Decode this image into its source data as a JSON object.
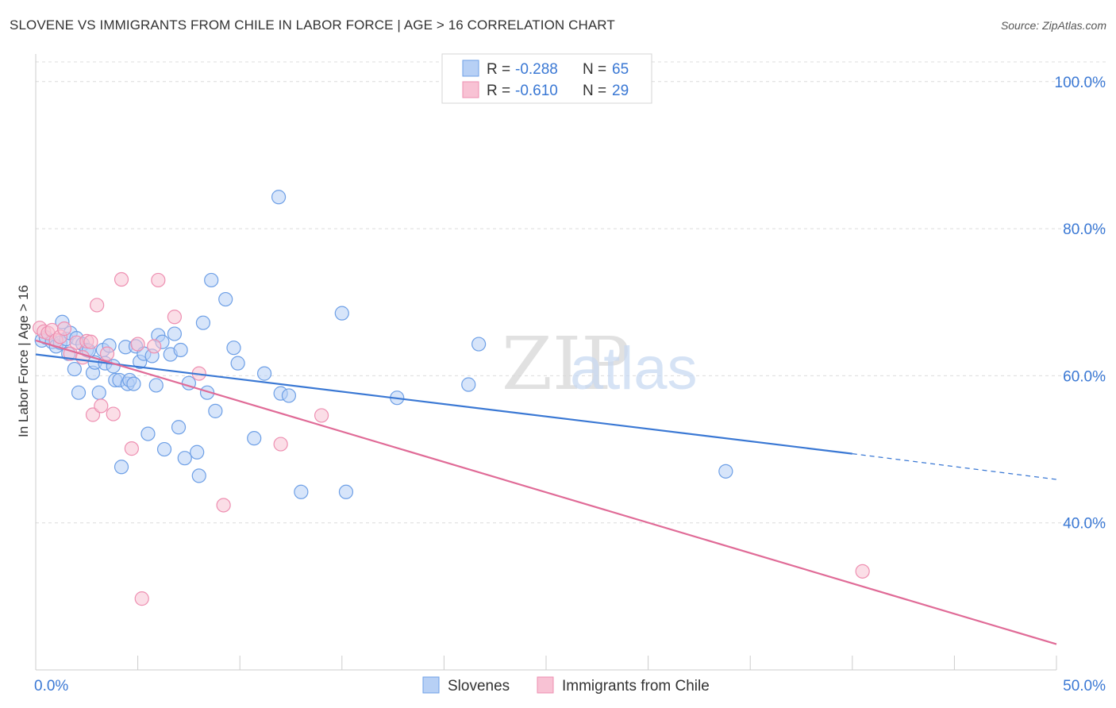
{
  "title": "SLOVENE VS IMMIGRANTS FROM CHILE IN LABOR FORCE | AGE > 16 CORRELATION CHART",
  "source": "Source: ZipAtlas.com",
  "watermark": {
    "zip": "ZIP",
    "atlas": "atlas"
  },
  "colors": {
    "blue": "#3a78d4",
    "blue_fill": "#b7d0f5",
    "blue_stroke": "#6d9fe6",
    "pink": "#e06b97",
    "pink_fill": "#f8c2d4",
    "pink_stroke": "#ee8fb1",
    "tick_text": "#3a78d4",
    "grid": "#dcdcdc"
  },
  "legend_top": [
    {
      "label_r": "R = ",
      "r": "-0.288",
      "label_n": "N = ",
      "n": "65"
    },
    {
      "label_r": "R = ",
      "r": "-0.610",
      "label_n": "N = ",
      "n": "29"
    }
  ],
  "chart_data": {
    "type": "scatter",
    "title": "SLOVENE VS IMMIGRANTS FROM CHILE IN LABOR FORCE | AGE > 16 CORRELATION CHART",
    "xlabel": "",
    "ylabel": "In Labor Force | Age > 16",
    "xlim": [
      0,
      50
    ],
    "ylim": [
      20,
      103
    ],
    "x_tick_labels": [
      "0.0%",
      "50.0%"
    ],
    "y_ticks": [
      40,
      60,
      80,
      100
    ],
    "y_tick_labels": [
      "40.0%",
      "60.0%",
      "80.0%",
      "100.0%"
    ],
    "legend": [
      "Slovenes",
      "Immigrants from Chile"
    ],
    "series": [
      {
        "name": "Slovenes",
        "trend": {
          "x0": 0,
          "y0": 62.9,
          "x1": 40,
          "y1": 49.4,
          "x_dash_end": 50,
          "y_dash_end": 45.9
        },
        "points": [
          [
            0.3,
            64.8
          ],
          [
            0.5,
            65.2
          ],
          [
            0.8,
            64.6
          ],
          [
            1.0,
            64.0
          ],
          [
            1.2,
            64.5
          ],
          [
            1.3,
            67.3
          ],
          [
            1.5,
            65.0
          ],
          [
            1.6,
            63.0
          ],
          [
            1.7,
            65.8
          ],
          [
            1.9,
            60.9
          ],
          [
            2.0,
            65.1
          ],
          [
            2.1,
            57.7
          ],
          [
            2.3,
            64.3
          ],
          [
            2.5,
            63.5
          ],
          [
            2.6,
            63.4
          ],
          [
            2.8,
            60.4
          ],
          [
            2.9,
            61.8
          ],
          [
            3.1,
            57.7
          ],
          [
            3.3,
            63.5
          ],
          [
            3.4,
            61.7
          ],
          [
            3.6,
            64.1
          ],
          [
            3.8,
            61.3
          ],
          [
            3.9,
            59.4
          ],
          [
            4.1,
            59.4
          ],
          [
            4.2,
            47.6
          ],
          [
            4.4,
            63.9
          ],
          [
            4.5,
            58.9
          ],
          [
            4.6,
            59.4
          ],
          [
            4.8,
            58.9
          ],
          [
            4.9,
            64.0
          ],
          [
            5.1,
            61.9
          ],
          [
            5.3,
            63.0
          ],
          [
            5.5,
            52.1
          ],
          [
            5.7,
            62.7
          ],
          [
            5.9,
            58.7
          ],
          [
            6.0,
            65.5
          ],
          [
            6.2,
            64.6
          ],
          [
            6.3,
            50.0
          ],
          [
            6.6,
            62.9
          ],
          [
            6.8,
            65.7
          ],
          [
            7.0,
            53.0
          ],
          [
            7.1,
            63.5
          ],
          [
            7.3,
            48.8
          ],
          [
            7.5,
            59.0
          ],
          [
            7.9,
            49.6
          ],
          [
            8.0,
            46.4
          ],
          [
            8.2,
            67.2
          ],
          [
            8.4,
            57.7
          ],
          [
            8.6,
            73.0
          ],
          [
            8.8,
            55.2
          ],
          [
            9.3,
            70.4
          ],
          [
            9.7,
            63.8
          ],
          [
            9.9,
            61.7
          ],
          [
            10.7,
            51.5
          ],
          [
            11.2,
            60.3
          ],
          [
            11.9,
            84.3
          ],
          [
            12.0,
            57.6
          ],
          [
            12.4,
            57.3
          ],
          [
            13.0,
            44.2
          ],
          [
            15.0,
            68.5
          ],
          [
            15.2,
            44.2
          ],
          [
            17.7,
            57.0
          ],
          [
            21.2,
            58.8
          ],
          [
            21.7,
            64.3
          ],
          [
            33.8,
            47.0
          ]
        ]
      },
      {
        "name": "Immigrants from Chile",
        "trend": {
          "x0": 0,
          "y0": 64.8,
          "x1": 50,
          "y1": 23.5
        },
        "points": [
          [
            0.2,
            66.5
          ],
          [
            0.4,
            66.0
          ],
          [
            0.6,
            65.8
          ],
          [
            0.8,
            66.2
          ],
          [
            1.0,
            64.8
          ],
          [
            1.2,
            65.3
          ],
          [
            1.4,
            66.4
          ],
          [
            1.7,
            63.0
          ],
          [
            2.0,
            64.5
          ],
          [
            2.3,
            62.5
          ],
          [
            2.5,
            64.7
          ],
          [
            2.7,
            64.6
          ],
          [
            2.8,
            54.7
          ],
          [
            3.0,
            69.6
          ],
          [
            3.2,
            55.9
          ],
          [
            3.5,
            63.0
          ],
          [
            3.8,
            54.8
          ],
          [
            4.2,
            73.1
          ],
          [
            4.7,
            50.1
          ],
          [
            5.0,
            64.3
          ],
          [
            5.2,
            29.7
          ],
          [
            5.8,
            64.0
          ],
          [
            6.0,
            73.0
          ],
          [
            6.8,
            68.0
          ],
          [
            8.0,
            60.3
          ],
          [
            9.2,
            42.4
          ],
          [
            12.0,
            50.7
          ],
          [
            14.0,
            54.6
          ],
          [
            40.5,
            33.4
          ]
        ]
      }
    ]
  }
}
